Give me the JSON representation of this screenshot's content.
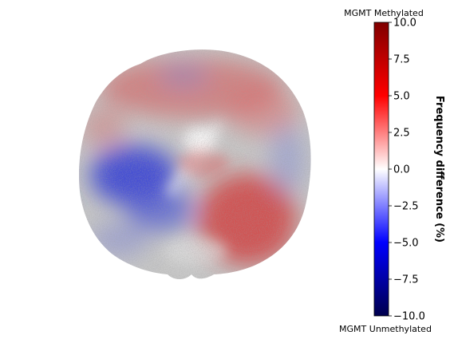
{
  "chart_data": {
    "type": "heatmap",
    "description_visible": false,
    "colorbar": {
      "label": "Frequency difference (%)",
      "top_annotation": "MGMT Methylated",
      "bottom_annotation": "MGMT Unmethylated",
      "vmin": -10.0,
      "vmax": 10.0,
      "ticks": [
        10.0,
        7.5,
        5.0,
        2.5,
        0.0,
        -2.5,
        -5.0,
        -7.5,
        -10.0
      ],
      "tick_labels": [
        "10.0",
        "7.5",
        "5.0",
        "2.5",
        "0.0",
        "−2.5",
        "−5.0",
        "−7.5",
        "−10.0"
      ],
      "colormap": "seismic",
      "colormap_stops": [
        {
          "value": -10.0,
          "color": "#00004d"
        },
        {
          "value": -5.0,
          "color": "#0000ff"
        },
        {
          "value": 0.0,
          "color": "#ffffff"
        },
        {
          "value": 5.0,
          "color": "#ff0000"
        },
        {
          "value": 10.0,
          "color": "#800000"
        }
      ]
    },
    "regions": [
      {
        "region": "left-lateral (image left, mid)",
        "value": -6.0
      },
      {
        "region": "left-inferior (image left, lower)",
        "value": -4.5
      },
      {
        "region": "frontal (top)",
        "value": 3.5
      },
      {
        "region": "right posterior (image right, lower)",
        "value": 5.0
      },
      {
        "region": "midline center",
        "value": 1.5
      },
      {
        "region": "right lateral (image right, mid)",
        "value": -1.5
      }
    ],
    "brain_mask_color": "#8c8c8c"
  }
}
